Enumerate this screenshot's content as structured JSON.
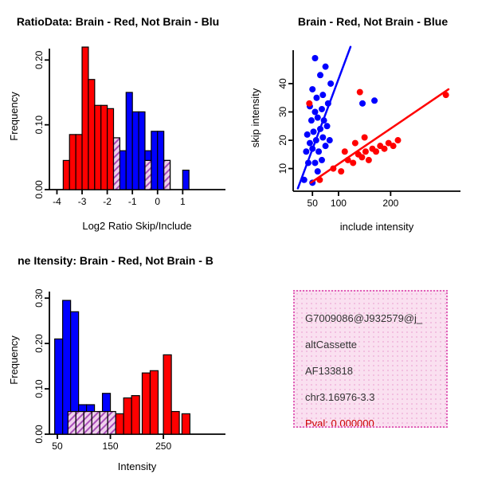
{
  "colors": {
    "red": "#FF0000",
    "blue": "#0000FF",
    "overlap_bg": "#EFD0EC",
    "overlap_stroke": "#A84CB8",
    "axis": "#000000"
  },
  "chart_data": [
    {
      "id": "log2-ratio-histogram",
      "type": "bar",
      "title": "RatioData: Brain - Red, Not Brain - Blu",
      "xlabel": "Log2 Ratio Skip/Include",
      "ylabel": "Frequency",
      "xlim": [
        -4.3,
        2.7
      ],
      "ylim": [
        0,
        0.225
      ],
      "xticks": [
        -4,
        -3,
        -2,
        -1,
        0,
        1
      ],
      "xtick_labels": [
        "-4",
        "-3",
        "-2",
        "-1",
        "0",
        "1"
      ],
      "yticks": [
        0,
        0.1,
        0.2
      ],
      "ytick_labels": [
        "0.00",
        "0.10",
        "0.20"
      ],
      "bin_width": 0.25,
      "grid": false,
      "legend": false,
      "series": [
        {
          "name": "not-brain-blue",
          "color": "#0000FF",
          "bars": [
            {
              "x": -1.75,
              "h": 0.06
            },
            {
              "x": -1.5,
              "h": 0.06
            },
            {
              "x": -1.25,
              "h": 0.15
            },
            {
              "x": -1.0,
              "h": 0.12
            },
            {
              "x": -0.75,
              "h": 0.12
            },
            {
              "x": -0.5,
              "h": 0.06
            },
            {
              "x": -0.25,
              "h": 0.09
            },
            {
              "x": 0.0,
              "h": 0.09
            },
            {
              "x": 0.25,
              "h": 0.045
            },
            {
              "x": 1.0,
              "h": 0.03
            }
          ]
        },
        {
          "name": "brain-red",
          "color": "#FF0000",
          "bars": [
            {
              "x": -3.75,
              "h": 0.045
            },
            {
              "x": -3.5,
              "h": 0.085
            },
            {
              "x": -3.25,
              "h": 0.085
            },
            {
              "x": -3.0,
              "h": 0.22
            },
            {
              "x": -2.75,
              "h": 0.17
            },
            {
              "x": -2.5,
              "h": 0.13
            },
            {
              "x": -2.25,
              "h": 0.13
            },
            {
              "x": -2.0,
              "h": 0.125
            }
          ]
        },
        {
          "name": "overlap",
          "pattern": "hatch1",
          "bars": [
            {
              "x": -1.75,
              "h": 0.08
            },
            {
              "x": -0.5,
              "h": 0.045
            },
            {
              "x": 0.25,
              "h": 0.045
            }
          ]
        }
      ]
    },
    {
      "id": "intensity-scatter",
      "type": "scatter",
      "title": "Brain - Red, Not Brain - Blue",
      "xlabel": "include intensity",
      "ylabel": "skip intensity",
      "xlim": [
        13,
        334
      ],
      "ylim": [
        2,
        53.5
      ],
      "xticks": [
        50,
        100,
        200
      ],
      "xtick_labels": [
        "50",
        "100",
        "200"
      ],
      "yticks": [
        10,
        20,
        30,
        40
      ],
      "ytick_labels": [
        "10",
        "20",
        "30",
        "40"
      ],
      "grid": false,
      "legend": false,
      "series": [
        {
          "name": "not-brain-blue",
          "color": "#0000FF",
          "points": [
            [
              34,
              6
            ],
            [
              50,
              5
            ],
            [
              60,
              9
            ],
            [
              42,
              12
            ],
            [
              55,
              12
            ],
            [
              68,
              13
            ],
            [
              38,
              16
            ],
            [
              50,
              17
            ],
            [
              62,
              16
            ],
            [
              75,
              18
            ],
            [
              45,
              19
            ],
            [
              57,
              20
            ],
            [
              70,
              21
            ],
            [
              83,
              20
            ],
            [
              40,
              22
            ],
            [
              52,
              23
            ],
            [
              65,
              24
            ],
            [
              78,
              25
            ],
            [
              48,
              27
            ],
            [
              60,
              28
            ],
            [
              72,
              27
            ],
            [
              55,
              30
            ],
            [
              68,
              31
            ],
            [
              45,
              32
            ],
            [
              80,
              33
            ],
            [
              58,
              35
            ],
            [
              70,
              36
            ],
            [
              50,
              38
            ],
            [
              85,
              40
            ],
            [
              65,
              43
            ],
            [
              75,
              46
            ],
            [
              55,
              49
            ],
            [
              146,
              33
            ],
            [
              169,
              34
            ]
          ],
          "line": [
            [
              22,
              3
            ],
            [
              123,
              53
            ]
          ]
        },
        {
          "name": "brain-red",
          "color": "#FF0000",
          "points": [
            [
              64,
              6
            ],
            [
              90,
              10
            ],
            [
              105,
              9
            ],
            [
              118,
              13
            ],
            [
              128,
              12
            ],
            [
              138,
              15
            ],
            [
              145,
              14
            ],
            [
              152,
              16
            ],
            [
              158,
              13
            ],
            [
              165,
              17
            ],
            [
              172,
              16
            ],
            [
              180,
              18
            ],
            [
              188,
              17
            ],
            [
              196,
              19
            ],
            [
              205,
              18
            ],
            [
              214,
              20
            ],
            [
              150,
              21
            ],
            [
              132,
              19
            ],
            [
              112,
              16
            ],
            [
              44,
              33
            ],
            [
              141,
              37
            ],
            [
              306,
              36
            ]
          ],
          "line": [
            [
              47,
              5
            ],
            [
              311,
              38
            ]
          ]
        }
      ]
    },
    {
      "id": "gene-intensity-histogram",
      "type": "bar",
      "title": "ne Itensity: Brain - Red, Not Brain - B",
      "xlabel": "Intensity",
      "ylabel": "Frequency",
      "xlim": [
        35,
        367
      ],
      "ylim": [
        0,
        0.325
      ],
      "xticks": [
        50,
        150,
        250
      ],
      "xtick_labels": [
        "50",
        "150",
        "250"
      ],
      "yticks": [
        0,
        0.1,
        0.2,
        0.3
      ],
      "ytick_labels": [
        "0.00",
        "0.10",
        "0.20",
        "0.30"
      ],
      "bin_width": 15,
      "grid": false,
      "legend": false,
      "series": [
        {
          "name": "not-brain-blue",
          "color": "#0000FF",
          "bars": [
            {
              "x": 45,
              "h": 0.21
            },
            {
              "x": 60,
              "h": 0.295
            },
            {
              "x": 75,
              "h": 0.27
            },
            {
              "x": 90,
              "h": 0.065
            },
            {
              "x": 105,
              "h": 0.065
            },
            {
              "x": 135,
              "h": 0.09
            }
          ]
        },
        {
          "name": "brain-red",
          "color": "#FF0000",
          "bars": [
            {
              "x": 160,
              "h": 0.045
            },
            {
              "x": 175,
              "h": 0.08
            },
            {
              "x": 190,
              "h": 0.085
            },
            {
              "x": 210,
              "h": 0.135
            },
            {
              "x": 225,
              "h": 0.14
            },
            {
              "x": 250,
              "h": 0.175
            },
            {
              "x": 265,
              "h": 0.05
            },
            {
              "x": 285,
              "h": 0.045
            }
          ]
        },
        {
          "name": "overlap",
          "pattern": "hatch3",
          "bars": [
            {
              "x": 70,
              "h": 0.05
            },
            {
              "x": 85,
              "h": 0.05
            },
            {
              "x": 100,
              "h": 0.05
            },
            {
              "x": 115,
              "h": 0.05
            },
            {
              "x": 130,
              "h": 0.05
            },
            {
              "x": 145,
              "h": 0.05
            }
          ]
        }
      ]
    }
  ],
  "info_panel": {
    "background": "#FAE0F0",
    "border_color": "#E060B8",
    "lines": [
      {
        "text": "G7009086@J932579@j_",
        "color": "#333333"
      },
      {
        "text": "altCassette",
        "color": "#333333"
      },
      {
        "text": "AF133818",
        "color": "#333333"
      },
      {
        "text": "chr3.16976-3.3",
        "color": "#333333"
      },
      {
        "text": "Pval: 0.000000",
        "color": "#CC0000"
      }
    ]
  }
}
